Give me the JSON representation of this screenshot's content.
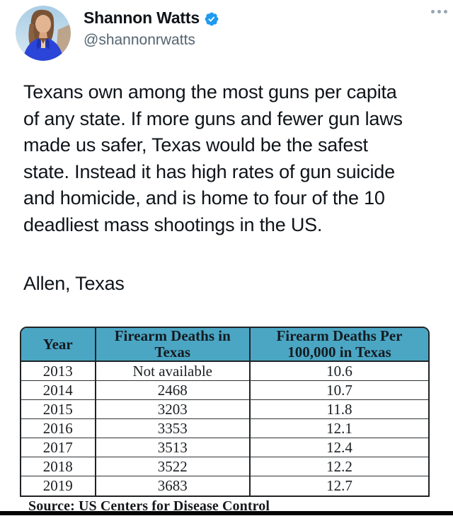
{
  "header": {
    "display_name": "Shannon Watts",
    "handle": "@shannonrwatts",
    "verified": "verified",
    "more_label": "more options"
  },
  "tweet": {
    "body_lines": [
      "Texans own among the most guns per capita",
      "of any state. If more guns and fewer gun laws",
      "made us safer, Texas would be the safest",
      "state. Instead it has high rates of gun suicide",
      "and homicide, and is home to four of the 10",
      "deadliest mass shootings in the US."
    ],
    "location_line": "Allen, Texas"
  },
  "table": {
    "columns": [
      "Year",
      "Firearm Deaths in Texas",
      "Firearm Deaths Per 100,000 in Texas"
    ],
    "rows": [
      [
        "2013",
        "Not available",
        "10.6"
      ],
      [
        "2014",
        "2468",
        "10.7"
      ],
      [
        "2015",
        "3203",
        "11.8"
      ],
      [
        "2016",
        "3353",
        "12.1"
      ],
      [
        "2017",
        "3513",
        "12.4"
      ],
      [
        "2018",
        "3522",
        "12.2"
      ],
      [
        "2019",
        "3683",
        "12.7"
      ]
    ],
    "source": "Source: US Centers for Disease Control"
  },
  "colors": {
    "accent_blue": "#1d9bf0",
    "table_header_bg": "#4ba6c4",
    "text_dark": "#0f1419",
    "text_gray": "#536471"
  }
}
